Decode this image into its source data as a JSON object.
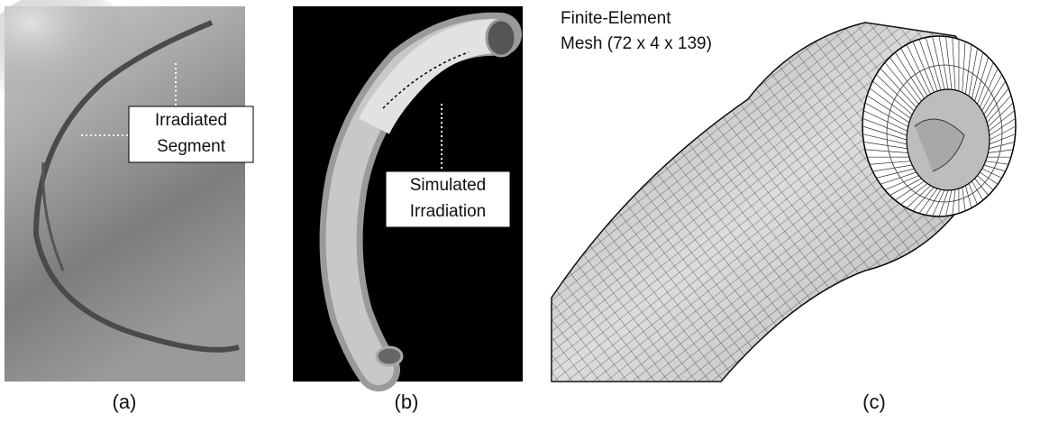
{
  "panels": [
    {
      "caption": "(a)",
      "label_lines": [
        "Irradiated",
        "Segment"
      ]
    },
    {
      "caption": "(b)",
      "label_lines": [
        "Simulated",
        "Irradiation"
      ]
    },
    {
      "caption": "(c)",
      "label_lines": [
        "Finite-Element",
        "Mesh (72 x 4 x 139)"
      ]
    }
  ]
}
